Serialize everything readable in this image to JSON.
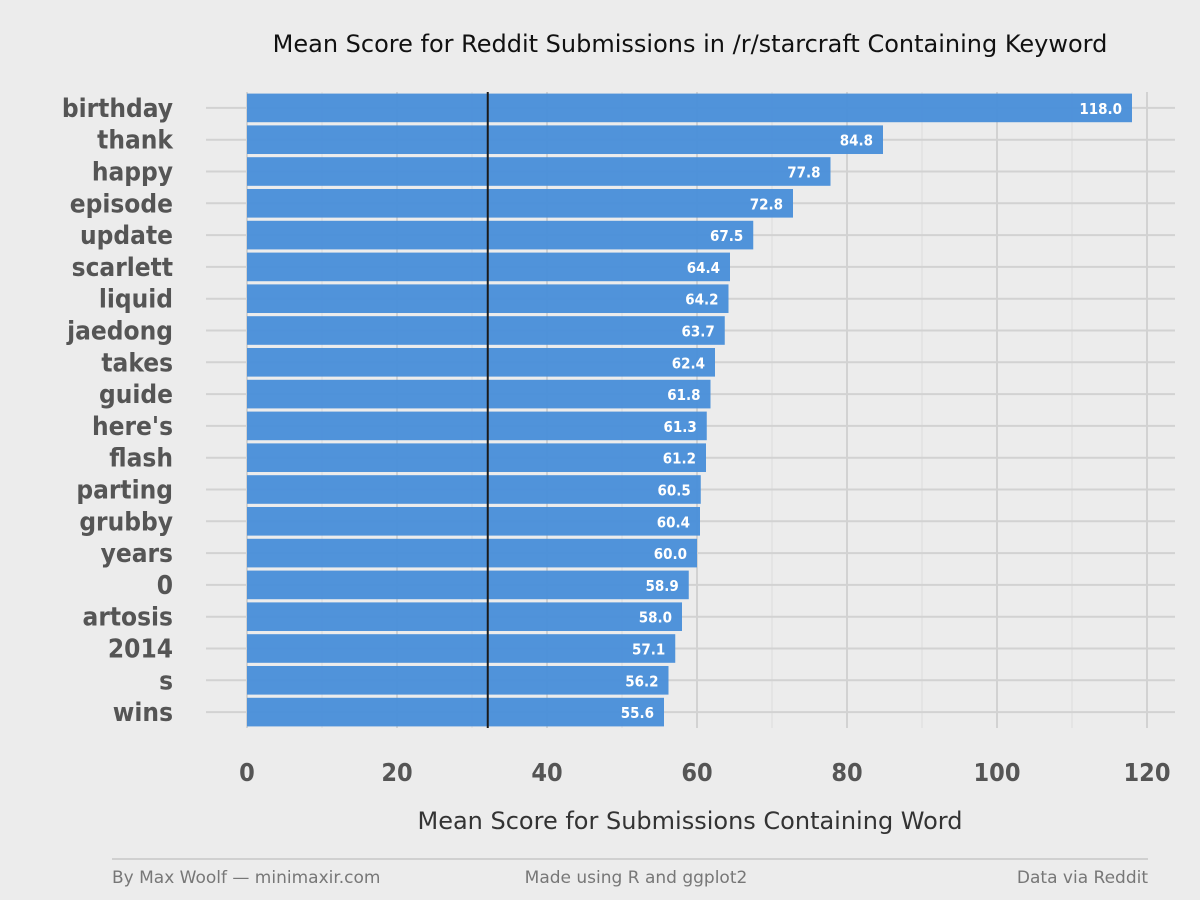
{
  "chart_data": {
    "type": "bar",
    "orientation": "horizontal",
    "title": "Mean Score for Reddit Submissions in /r/starcraft Containing Keyword",
    "xlabel": "Mean Score for Submissions Containing Word",
    "ylabel": "",
    "xlim": [
      0,
      120
    ],
    "x_ticks": [
      "0",
      "20",
      "40",
      "60",
      "80",
      "100",
      "120"
    ],
    "grid": true,
    "categories": [
      "birthday",
      "thank",
      "happy",
      "episode",
      "update",
      "scarlett",
      "liquid",
      "jaedong",
      "takes",
      "guide",
      "here's",
      "flash",
      "parting",
      "grubby",
      "years",
      "0",
      "artosis",
      "2014",
      "s",
      "wins"
    ],
    "values": [
      118.0,
      84.8,
      77.8,
      72.8,
      67.5,
      64.4,
      64.2,
      63.7,
      62.4,
      61.8,
      61.3,
      61.2,
      60.5,
      60.4,
      60.0,
      58.9,
      58.0,
      57.1,
      56.2,
      55.6
    ],
    "value_labels": [
      "118.0",
      "84.8",
      "77.8",
      "72.8",
      "67.5",
      "64.4",
      "64.2",
      "63.7",
      "62.4",
      "61.8",
      "61.3",
      "61.2",
      "60.5",
      "60.4",
      "60.0",
      "58.9",
      "58.0",
      "57.1",
      "56.2",
      "55.6"
    ],
    "reference_line": 32.1,
    "bar_color": "#4a90d9",
    "reference_line_color": "#1a1a1a"
  },
  "footer": {
    "left": "By Max Woolf — minimaxir.com",
    "center": "Made using R and ggplot2",
    "right": "Data via Reddit"
  }
}
